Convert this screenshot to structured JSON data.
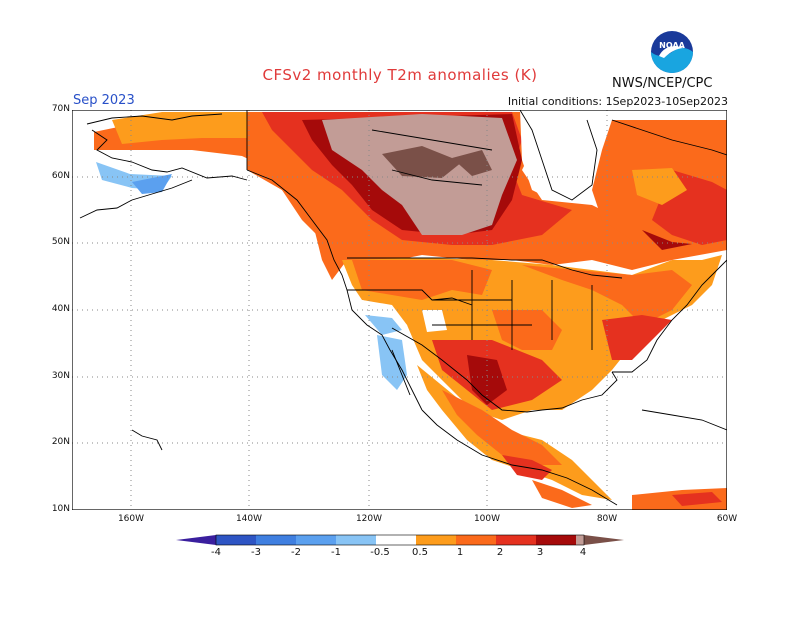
{
  "header": {
    "title": "CFSv2 monthly T2m anomalies (K)",
    "agency": "NWS/NCEP/CPC",
    "month": "Sep 2023",
    "initial_conditions": "Initial conditions: 1Sep2023-10Sep2023",
    "logo_text": "NOAA"
  },
  "axes": {
    "lat_labels": [
      "70N",
      "60N",
      "50N",
      "40N",
      "30N",
      "20N",
      "10N"
    ],
    "lon_labels": [
      "160W",
      "140W",
      "120W",
      "100W",
      "80W",
      "60W"
    ]
  },
  "colorbar": {
    "labels": [
      "-4",
      "-3",
      "-2",
      "-1",
      "-0.5",
      "0.5",
      "1",
      "2",
      "3",
      "4"
    ],
    "colors": [
      "#3a1f9e",
      "#2e55c4",
      "#3f7fe0",
      "#5ba0ef",
      "#88c4f5",
      "#ffffff",
      "#fd9c1c",
      "#fb6a1b",
      "#e5311f",
      "#a50a0a",
      "#c29c96",
      "#7a5048"
    ]
  },
  "colors": {
    "ocean": "#ffffff",
    "coast": "#000000",
    "grid": "#888888"
  }
}
